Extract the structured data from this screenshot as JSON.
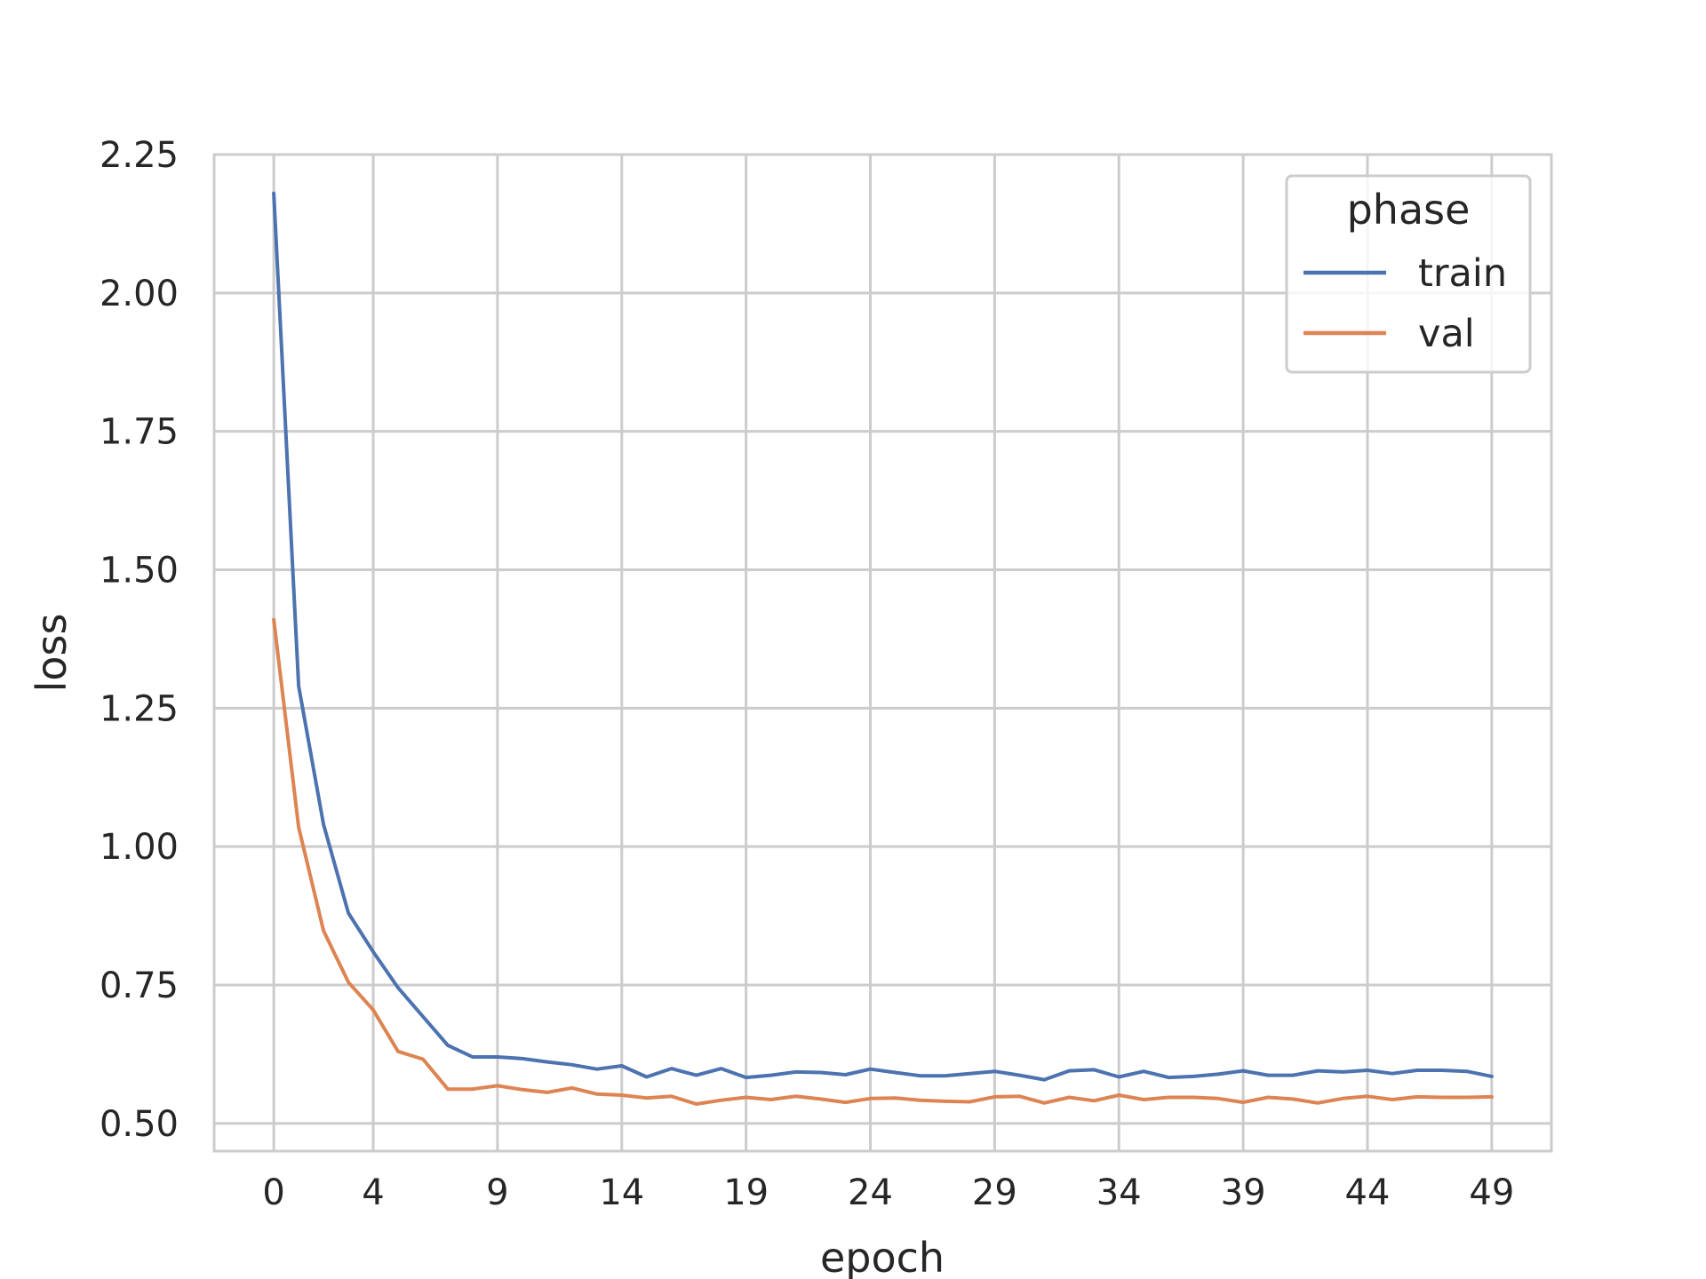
{
  "chart_data": {
    "type": "line",
    "xlabel": "epoch",
    "ylabel": "loss",
    "xlim": [
      -2.4,
      51.4
    ],
    "ylim": [
      0.45,
      2.25
    ],
    "xticks": [
      0,
      4,
      9,
      14,
      19,
      24,
      29,
      34,
      39,
      44,
      49
    ],
    "yticks": [
      0.5,
      0.75,
      1.0,
      1.25,
      1.5,
      1.75,
      2.0,
      2.25
    ],
    "ytick_labels": [
      "0.50",
      "0.75",
      "1.00",
      "1.25",
      "1.50",
      "1.75",
      "2.00",
      "2.25"
    ],
    "grid": true,
    "legend": {
      "title": "phase",
      "placement": "top-right"
    },
    "x": [
      0,
      1,
      2,
      3,
      4,
      5,
      6,
      7,
      8,
      9,
      10,
      11,
      12,
      13,
      14,
      15,
      16,
      17,
      18,
      19,
      20,
      21,
      22,
      23,
      24,
      25,
      26,
      27,
      28,
      29,
      30,
      31,
      32,
      33,
      34,
      35,
      36,
      37,
      38,
      39,
      40,
      41,
      42,
      43,
      44,
      45,
      46,
      47,
      48,
      49
    ],
    "series": [
      {
        "name": "train",
        "color": "#4c72b0",
        "values": [
          2.18,
          1.29,
          1.04,
          0.88,
          0.81,
          0.745,
          0.693,
          0.641,
          0.62,
          0.62,
          0.617,
          0.611,
          0.606,
          0.598,
          0.604,
          0.584,
          0.599,
          0.587,
          0.599,
          0.583,
          0.587,
          0.593,
          0.592,
          0.588,
          0.598,
          0.592,
          0.586,
          0.586,
          0.59,
          0.594,
          0.587,
          0.579,
          0.595,
          0.597,
          0.584,
          0.594,
          0.583,
          0.585,
          0.589,
          0.595,
          0.587,
          0.587,
          0.595,
          0.593,
          0.596,
          0.59,
          0.596,
          0.596,
          0.594,
          0.585
        ]
      },
      {
        "name": "val",
        "color": "#dd8452",
        "values": [
          1.41,
          1.035,
          0.848,
          0.755,
          0.705,
          0.63,
          0.616,
          0.562,
          0.562,
          0.568,
          0.561,
          0.556,
          0.564,
          0.553,
          0.551,
          0.546,
          0.549,
          0.535,
          0.542,
          0.547,
          0.543,
          0.549,
          0.544,
          0.538,
          0.545,
          0.546,
          0.542,
          0.54,
          0.539,
          0.548,
          0.549,
          0.537,
          0.547,
          0.541,
          0.551,
          0.543,
          0.547,
          0.547,
          0.545,
          0.538,
          0.547,
          0.544,
          0.537,
          0.545,
          0.549,
          0.543,
          0.548,
          0.547,
          0.547,
          0.548
        ]
      }
    ]
  }
}
